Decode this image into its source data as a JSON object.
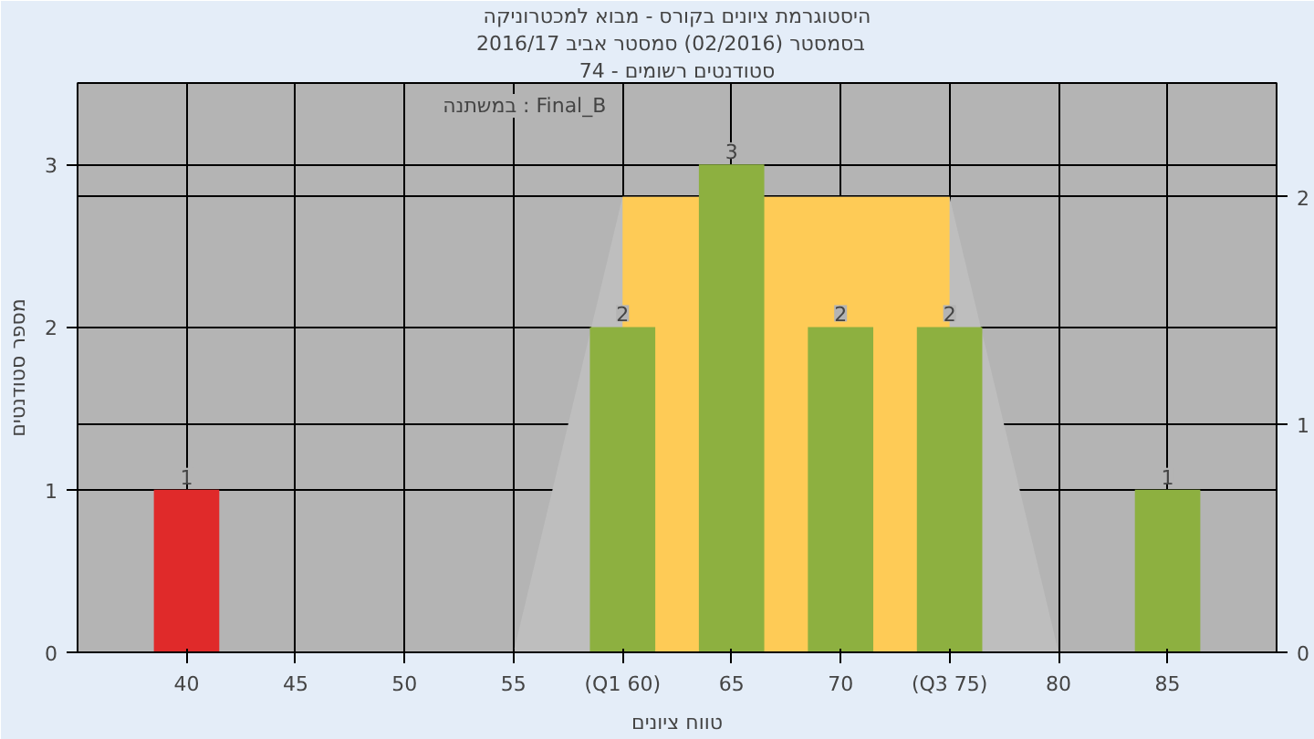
{
  "chart_data": {
    "type": "bar",
    "title": "היסטוגרמת ציונים בקורס - מבוא למכטרוניקה",
    "subtitle": "בסמסטר  (02/2016)  סמסטר אביב 2016/17",
    "xlabel": "טווח ציונים",
    "ylabel": "מספר סטודנטים",
    "annotations": [
      "סטודנטים רשומים - 74",
      "במשתנה : Final_B"
    ],
    "xlim": [
      35,
      90
    ],
    "xticks": [
      40,
      45,
      50,
      55,
      {
        "value": 60,
        "label": "(Q1 60)"
      },
      65,
      70,
      {
        "value": 75,
        "label": "(Q3 75)"
      },
      80,
      85
    ],
    "ylim": [
      0,
      3.5
    ],
    "yticks": [
      0,
      1,
      2,
      3
    ],
    "y2lim": [
      0,
      2.5
    ],
    "y2ticks": [
      0,
      1,
      2
    ],
    "grid": true,
    "series": [
      {
        "type": "area",
        "axis": "y2",
        "color": "#bebebe",
        "x": [
          55,
          60,
          75,
          80
        ],
        "values": [
          0,
          2,
          2,
          0
        ]
      },
      {
        "type": "area",
        "axis": "y2",
        "color": "#fecb56",
        "x": [
          60,
          75
        ],
        "values": [
          2,
          2
        ]
      },
      {
        "x": [
          40,
          60,
          65,
          70,
          75,
          85
        ],
        "colors": [
          "#e02a2a",
          "#8db040",
          "#8db040",
          "#8db040",
          "#8db040",
          "#8db040"
        ],
        "values": [
          1,
          2,
          3,
          2,
          2,
          1
        ],
        "value_labels": [
          "1",
          "2",
          "3",
          "2",
          "2",
          "1"
        ]
      }
    ]
  }
}
